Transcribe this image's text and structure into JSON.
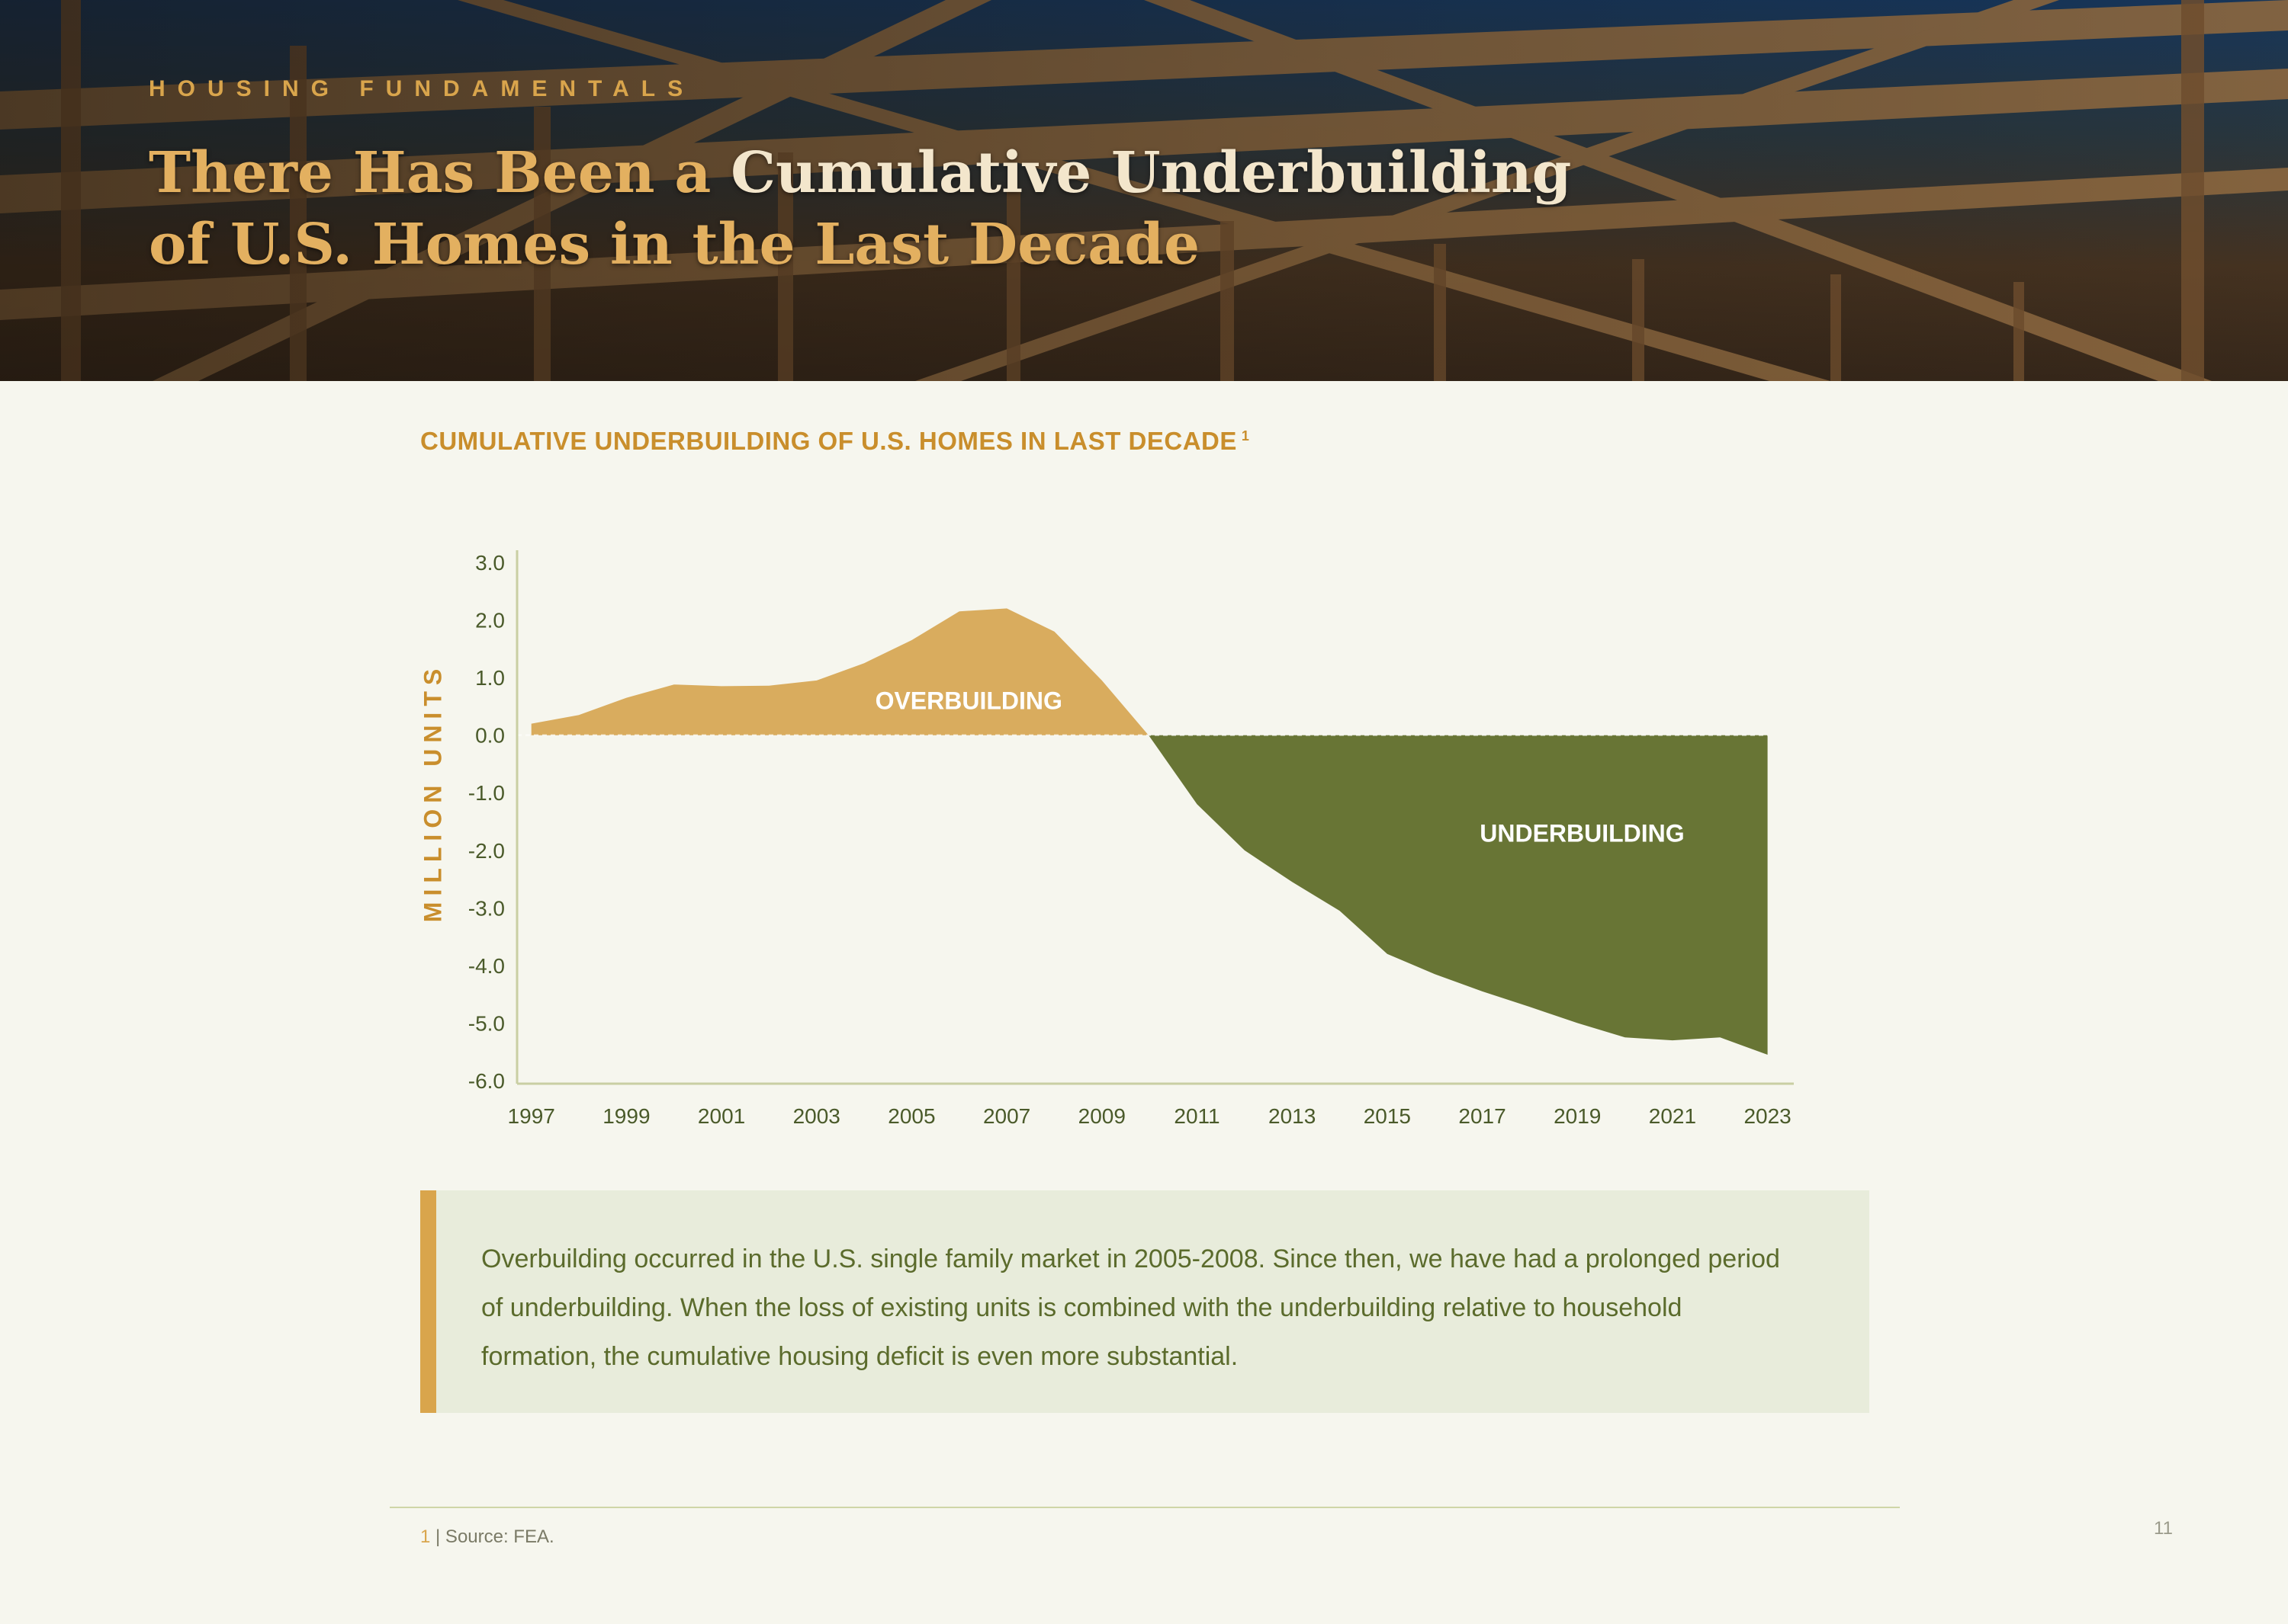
{
  "header": {
    "eyebrow": "HOUSING FUNDAMENTALS",
    "title_part1": "There Has Been a ",
    "title_highlight": "Cumulative Underbuilding",
    "title_part2": "of U.S. Homes in the Last Decade"
  },
  "chart_data": {
    "type": "area",
    "title": "CUMULATIVE UNDERBUILDING OF U.S. HOMES IN LAST DECADE",
    "title_footnote": "1",
    "ylabel": "MILLION UNITS",
    "xlabel": "",
    "ylim": [
      -6.0,
      3.0
    ],
    "xlim": [
      1996.7,
      2023.6
    ],
    "yticks": [
      "3.0",
      "2.0",
      "1.0",
      "0.0",
      "-1.0",
      "-2.0",
      "-3.0",
      "-4.0",
      "-5.0",
      "-6.0"
    ],
    "xticks": [
      "1997",
      "1999",
      "2001",
      "2003",
      "2005",
      "2007",
      "2009",
      "2011",
      "2013",
      "2015",
      "2017",
      "2019",
      "2021",
      "2023"
    ],
    "annotations": [
      "OVERBUILDING",
      "UNDERBUILDING"
    ],
    "colors": {
      "overbuilding": "#d9ac5e",
      "underbuilding": "#687535",
      "axis": "#c9cfa3",
      "tick_text": "#4a5a2a"
    },
    "grid": false,
    "x": [
      1997,
      1998,
      1999,
      2000,
      2001,
      2002,
      2003,
      2004,
      2005,
      2006,
      2007,
      2008,
      2009,
      2010,
      2011,
      2012,
      2013,
      2014,
      2015,
      2016,
      2017,
      2018,
      2019,
      2020,
      2021,
      2022,
      2023
    ],
    "values": [
      0.2,
      0.35,
      0.65,
      0.88,
      0.85,
      0.86,
      0.95,
      1.25,
      1.65,
      2.15,
      2.2,
      1.8,
      0.95,
      -0.02,
      -1.2,
      -2.0,
      -2.55,
      -3.05,
      -3.8,
      -4.15,
      -4.45,
      -4.72,
      -5.0,
      -5.25,
      -5.3,
      -5.25,
      -5.55
    ]
  },
  "callout": {
    "text": "Overbuilding occurred in the U.S. single family market in 2005-2008. Since then, we have had a prolonged period of underbuilding. When the loss of existing units is combined with the underbuilding relative to household formation, the cumulative housing deficit is even more substantial."
  },
  "footer": {
    "footnote_number": "1",
    "footnote_text": " | Source: FEA.",
    "page_number": "11"
  }
}
